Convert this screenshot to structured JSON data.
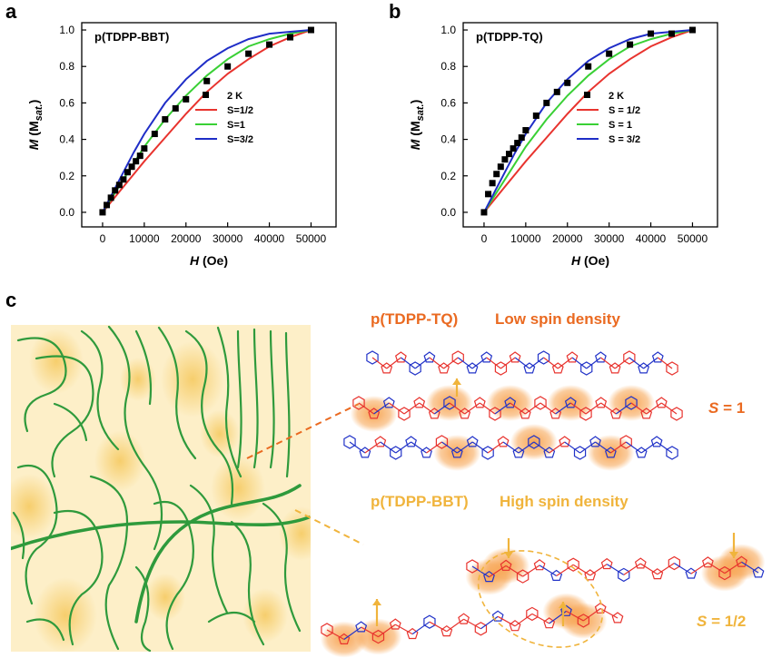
{
  "panels": {
    "a": "a",
    "b": "b",
    "c": "c"
  },
  "chart_data": [
    {
      "type": "scatter",
      "title": "p(TDPP-BBT)",
      "xlabel_italic": "H",
      "xlabel_unit": " (Oe)",
      "ylabel_italic": "M",
      "ylabel_unit": " (M",
      "ylabel_sub": "sat.",
      "ylabel_close": ")",
      "xlim": [
        -5000,
        56000
      ],
      "ylim": [
        -0.08,
        1.04
      ],
      "xticks": [
        0,
        10000,
        20000,
        30000,
        40000,
        50000
      ],
      "yticks": [
        0.0,
        0.2,
        0.4,
        0.6,
        0.8,
        1.0
      ],
      "legend_position": "center-right",
      "series": [
        {
          "name": "2 K",
          "kind": "markers",
          "color": "#000000",
          "x": [
            0,
            1000,
            2000,
            3000,
            4000,
            5000,
            6000,
            7000,
            8000,
            9000,
            10000,
            12500,
            15000,
            17500,
            20000,
            25000,
            30000,
            35000,
            40000,
            45000,
            50000
          ],
          "y": [
            0.0,
            0.04,
            0.08,
            0.12,
            0.15,
            0.18,
            0.22,
            0.25,
            0.28,
            0.31,
            0.35,
            0.43,
            0.51,
            0.57,
            0.62,
            0.72,
            0.8,
            0.87,
            0.92,
            0.96,
            1.0
          ]
        },
        {
          "name": "S=1/2",
          "kind": "line",
          "color": "#e8332e",
          "x": [
            0,
            2500,
            5000,
            7500,
            10000,
            15000,
            20000,
            25000,
            30000,
            35000,
            40000,
            45000,
            50000
          ],
          "y": [
            0.0,
            0.07,
            0.14,
            0.21,
            0.28,
            0.41,
            0.54,
            0.66,
            0.76,
            0.84,
            0.91,
            0.96,
            1.0
          ]
        },
        {
          "name": "S=1",
          "kind": "line",
          "color": "#39d035",
          "x": [
            0,
            2500,
            5000,
            7500,
            10000,
            15000,
            20000,
            25000,
            30000,
            35000,
            40000,
            45000,
            50000
          ],
          "y": [
            0.0,
            0.09,
            0.18,
            0.27,
            0.36,
            0.51,
            0.64,
            0.75,
            0.84,
            0.91,
            0.95,
            0.98,
            1.0
          ]
        },
        {
          "name": "S=3/2",
          "kind": "line",
          "color": "#1f2dc7",
          "x": [
            0,
            2500,
            5000,
            7500,
            10000,
            15000,
            20000,
            25000,
            30000,
            35000,
            40000,
            45000,
            50000
          ],
          "y": [
            0.0,
            0.11,
            0.22,
            0.33,
            0.43,
            0.6,
            0.73,
            0.83,
            0.9,
            0.95,
            0.98,
            0.99,
            1.0
          ]
        }
      ]
    },
    {
      "type": "scatter",
      "title": "p(TDPP-TQ)",
      "xlabel_italic": "H",
      "xlabel_unit": " (Oe)",
      "ylabel_italic": "M",
      "ylabel_unit": " (M",
      "ylabel_sub": "sat.",
      "ylabel_close": ")",
      "xlim": [
        -5000,
        56000
      ],
      "ylim": [
        -0.08,
        1.04
      ],
      "xticks": [
        0,
        10000,
        20000,
        30000,
        40000,
        50000
      ],
      "yticks": [
        0.0,
        0.2,
        0.4,
        0.6,
        0.8,
        1.0
      ],
      "legend_position": "center-right",
      "series": [
        {
          "name": "2 K",
          "kind": "markers",
          "color": "#000000",
          "x": [
            0,
            1000,
            2000,
            3000,
            4000,
            5000,
            6000,
            7000,
            8000,
            9000,
            10000,
            12500,
            15000,
            17500,
            20000,
            25000,
            30000,
            35000,
            40000,
            45000,
            50000
          ],
          "y": [
            0.0,
            0.1,
            0.16,
            0.21,
            0.25,
            0.29,
            0.32,
            0.35,
            0.38,
            0.41,
            0.45,
            0.53,
            0.6,
            0.66,
            0.71,
            0.8,
            0.87,
            0.92,
            0.98,
            0.98,
            1.0
          ]
        },
        {
          "name": "S = 1/2",
          "kind": "line",
          "color": "#e8332e",
          "x": [
            0,
            2500,
            5000,
            7500,
            10000,
            15000,
            20000,
            25000,
            30000,
            35000,
            40000,
            45000,
            50000
          ],
          "y": [
            0.0,
            0.07,
            0.14,
            0.21,
            0.28,
            0.41,
            0.54,
            0.66,
            0.76,
            0.84,
            0.91,
            0.96,
            1.0
          ]
        },
        {
          "name": "S = 1",
          "kind": "line",
          "color": "#39d035",
          "x": [
            0,
            2500,
            5000,
            7500,
            10000,
            15000,
            20000,
            25000,
            30000,
            35000,
            40000,
            45000,
            50000
          ],
          "y": [
            0.0,
            0.09,
            0.18,
            0.27,
            0.36,
            0.51,
            0.64,
            0.75,
            0.84,
            0.91,
            0.95,
            0.98,
            1.0
          ]
        },
        {
          "name": "S = 3/2",
          "kind": "line",
          "color": "#1f2dc7",
          "x": [
            0,
            2500,
            5000,
            7500,
            10000,
            15000,
            20000,
            25000,
            30000,
            35000,
            40000,
            45000,
            50000
          ],
          "y": [
            0.0,
            0.11,
            0.22,
            0.33,
            0.43,
            0.6,
            0.73,
            0.83,
            0.9,
            0.95,
            0.98,
            0.99,
            1.0
          ]
        }
      ]
    }
  ],
  "schematic": {
    "tq_label": "p(TDPP-TQ)",
    "tq_density": "Low spin density",
    "tq_spin_prefix": "S",
    "tq_spin_value": " = 1",
    "bbt_label": "p(TDPP-BBT)",
    "bbt_density": "High spin density",
    "bbt_spin_prefix": "S",
    "bbt_spin_value": " = 1/2",
    "colors": {
      "tq_orange": "#ea6a21",
      "bbt_yellow": "#f0b43c",
      "fiber_green": "#2f9a3c",
      "domain_bg": "#fdefc8",
      "domain_blob": "#f8d98a",
      "glow": "#f7a24d",
      "chain_red": "#e8332e",
      "chain_blue": "#2233c8"
    }
  }
}
